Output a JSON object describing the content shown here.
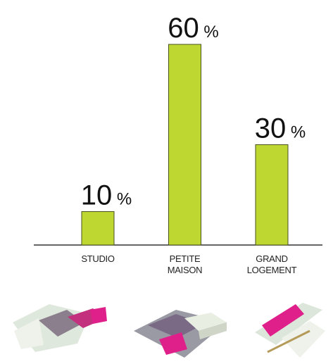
{
  "chart_data": {
    "type": "bar",
    "categories": [
      "STUDIO",
      "PETITE MAISON",
      "GRAND LOGEMENT"
    ],
    "values": [
      10,
      60,
      30
    ],
    "value_labels": [
      "10 %",
      "60 %",
      "30 %"
    ],
    "color": "#bfd731"
  }
}
